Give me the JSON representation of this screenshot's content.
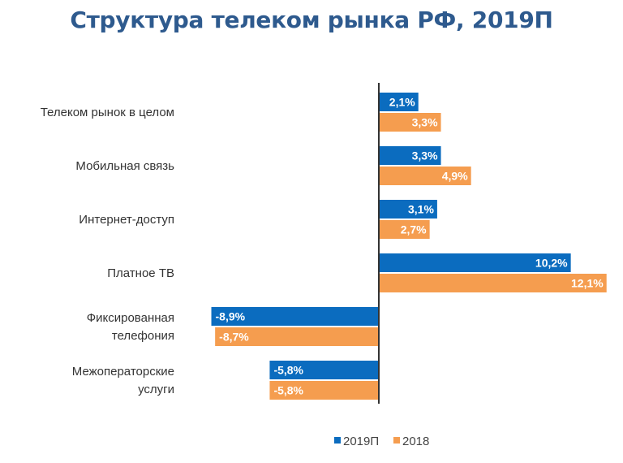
{
  "colors": {
    "series_2019": "#0b6cbf",
    "series_2018": "#f59d4f",
    "title": "#2e5a8e",
    "axis": "#333333"
  },
  "chart_data": {
    "type": "bar",
    "orientation": "horizontal",
    "title": "Структура телеком рынка РФ, 2019П",
    "categories": [
      [
        "Телеком рынок в целом"
      ],
      [
        "Мобильная связь"
      ],
      [
        "Интернет-доступ"
      ],
      [
        "Платное ТВ"
      ],
      [
        "Фиксированная",
        "телефония"
      ],
      [
        "Межоператорские",
        "услуги"
      ]
    ],
    "series": [
      {
        "name": "2019П",
        "values": [
          2.1,
          3.3,
          3.1,
          10.2,
          -8.9,
          -5.8
        ],
        "labels": [
          "2,1%",
          "3,3%",
          "3,1%",
          "10,2%",
          "-8,9%",
          "-5,8%"
        ]
      },
      {
        "name": "2018",
        "values": [
          3.3,
          4.9,
          2.7,
          12.1,
          -8.7,
          -5.8
        ],
        "labels": [
          "3,3%",
          "4,9%",
          "2,7%",
          "12,1%",
          "-8,7%",
          "-5,8%"
        ]
      }
    ],
    "xlim": [
      -9,
      12.1
    ],
    "legend": "bottom",
    "grid": false
  }
}
